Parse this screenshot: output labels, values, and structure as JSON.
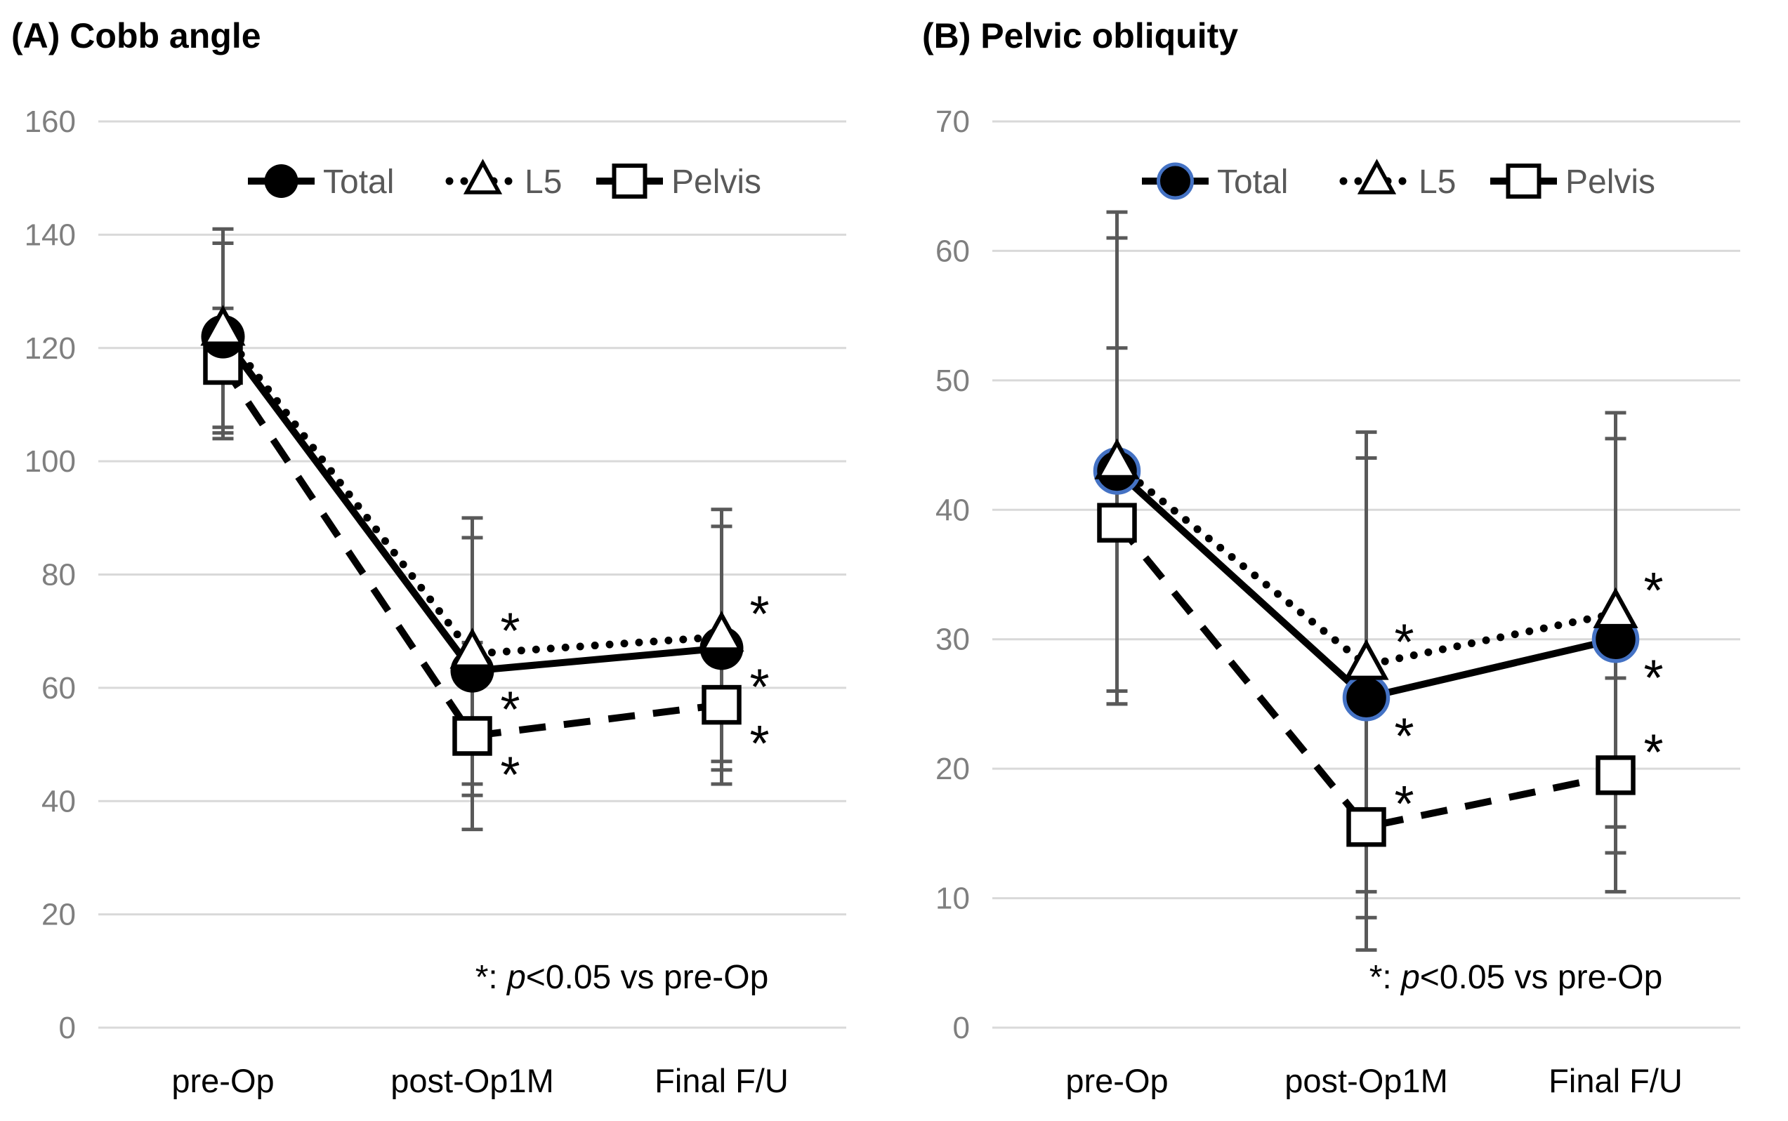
{
  "colors": {
    "background": "#ffffff",
    "grid": "#d9d9d9",
    "error_bar": "#595959",
    "axis_tick_label": "#7f7f7f",
    "x_axis_label": "#000000",
    "legend_text": "#595959",
    "series_black": "#000000",
    "marker_fill_open": "#ffffff",
    "total_ring_blue": "#4472c4"
  },
  "chart_data": [
    {
      "panel_label": "(A)",
      "title": "(A) Cobb angle",
      "type": "line",
      "categories": [
        "pre-Op",
        "post-Op1M",
        "Final F/U"
      ],
      "ylim": [
        0,
        160
      ],
      "yticks": [
        0,
        20,
        40,
        60,
        80,
        100,
        120,
        140,
        160
      ],
      "grid": true,
      "legend_position": "top-center",
      "legend_order": [
        "Total",
        "L5",
        "Pelvis"
      ],
      "series": [
        {
          "name": "Total",
          "marker": "filled-circle",
          "line_style": "solid",
          "color": "#000000",
          "values": [
            122,
            63,
            67
          ],
          "err_low": [
            104,
            41,
            45.5
          ],
          "err_high": [
            138.5,
            86.5,
            88.5
          ]
        },
        {
          "name": "L5",
          "marker": "open-triangle",
          "line_style": "dotted",
          "color": "#000000",
          "values": [
            123,
            66,
            69
          ],
          "err_low": [
            106,
            43,
            47
          ],
          "err_high": [
            141,
            90,
            91.5
          ]
        },
        {
          "name": "Pelvis",
          "marker": "open-square",
          "line_style": "dashed",
          "color": "#000000",
          "values": [
            117,
            51.5,
            57
          ],
          "err_low": [
            105,
            35,
            43
          ],
          "err_high": [
            127,
            68,
            70
          ]
        }
      ],
      "significance": {
        "symbol": "*",
        "note_prefix": "*: ",
        "note_italic": "p",
        "note_suffix": "<0.05 vs pre-Op",
        "points": [
          {
            "series": "Total",
            "categories": [
              "post-Op1M",
              "Final F/U"
            ],
            "position": "below"
          },
          {
            "series": "L5",
            "categories": [
              "post-Op1M",
              "Final F/U"
            ],
            "position": "above"
          },
          {
            "series": "Pelvis",
            "categories": [
              "post-Op1M",
              "Final F/U"
            ],
            "position": "below"
          }
        ]
      }
    },
    {
      "panel_label": "(B)",
      "title": "(B) Pelvic obliquity",
      "type": "line",
      "categories": [
        "pre-Op",
        "post-Op1M",
        "Final F/U"
      ],
      "ylim": [
        0,
        70
      ],
      "yticks": [
        0,
        10,
        20,
        30,
        40,
        50,
        60,
        70
      ],
      "grid": true,
      "legend_position": "top-center",
      "legend_order": [
        "Total",
        "L5",
        "Pelvis"
      ],
      "series": [
        {
          "name": "Total",
          "marker": "filled-circle",
          "marker_ring": "#4472c4",
          "line_style": "solid",
          "color": "#000000",
          "values": [
            43,
            25.5,
            30
          ],
          "err_low": [
            25,
            8.5,
            13.5
          ],
          "err_high": [
            61,
            44,
            45.5
          ]
        },
        {
          "name": "L5",
          "marker": "open-triangle",
          "line_style": "dotted",
          "color": "#000000",
          "values": [
            43.5,
            28,
            32
          ],
          "err_low": [
            26,
            10.5,
            15.5
          ],
          "err_high": [
            63,
            46,
            47.5
          ]
        },
        {
          "name": "Pelvis",
          "marker": "open-square",
          "line_style": "dashed",
          "color": "#000000",
          "values": [
            39,
            15.5,
            19.5
          ],
          "err_low": [
            25,
            6,
            10.5
          ],
          "err_high": [
            52.5,
            26,
            27
          ]
        }
      ],
      "significance": {
        "symbol": "*",
        "note_prefix": "*: ",
        "note_italic": "p",
        "note_suffix": "<0.05 vs pre-Op",
        "points": [
          {
            "series": "Total",
            "categories": [
              "post-Op1M",
              "Final F/U"
            ],
            "position": "below"
          },
          {
            "series": "L5",
            "categories": [
              "post-Op1M",
              "Final F/U"
            ],
            "position": "above"
          },
          {
            "series": "Pelvis",
            "categories": [
              "post-Op1M",
              "Final F/U"
            ],
            "position": "above"
          }
        ]
      }
    }
  ]
}
